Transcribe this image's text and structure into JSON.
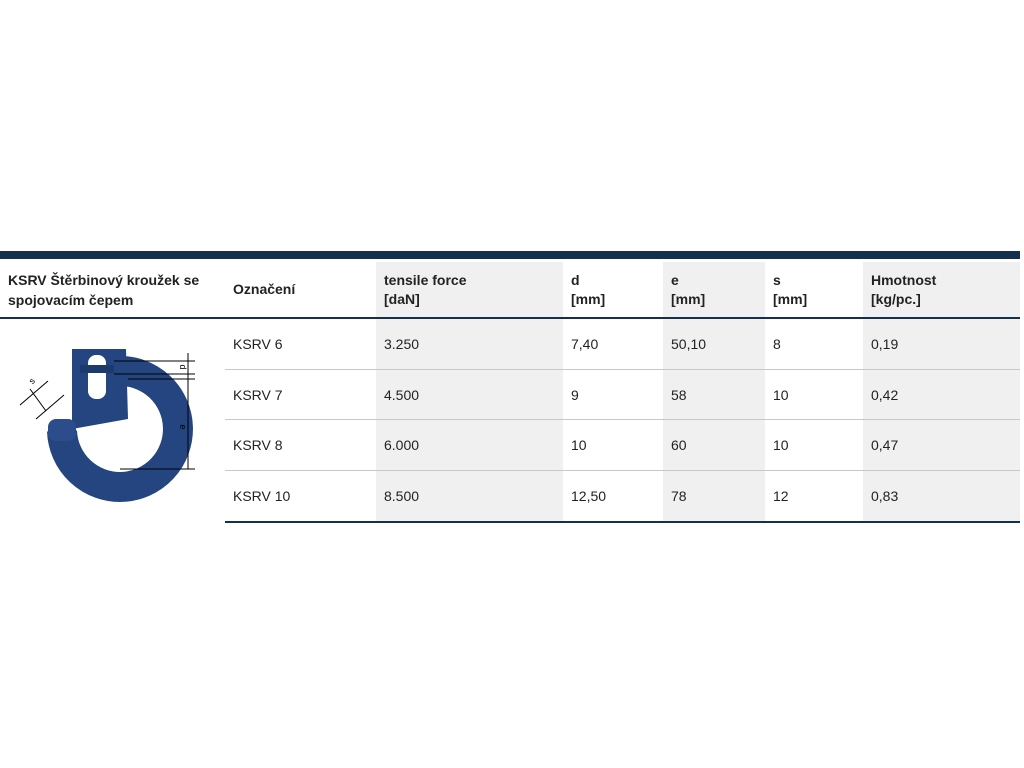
{
  "table": {
    "title": "KSRV Štěrbinový kroužek se spojovacím čepem",
    "headers": [
      [
        "Označení"
      ],
      [
        "tensile force",
        "[daN]"
      ],
      [
        "d",
        "[mm]"
      ],
      [
        "e",
        "[mm]"
      ],
      [
        "s",
        "[mm]"
      ],
      [
        "Hmotnost",
        "[kg/pc.]"
      ]
    ],
    "rows": [
      [
        "KSRV 6",
        "3.250",
        "7,40",
        "50,10",
        "8",
        "0,19"
      ],
      [
        "KSRV 7",
        "4.500",
        "9",
        "58",
        "10",
        "0,42"
      ],
      [
        "KSRV 8",
        "6.000",
        "10",
        "60",
        "10",
        "0,47"
      ],
      [
        "KSRV 10",
        "8.500",
        "12,50",
        "78",
        "12",
        "0,83"
      ]
    ]
  },
  "diagram": {
    "labels": [
      "d",
      "e",
      "s"
    ]
  }
}
